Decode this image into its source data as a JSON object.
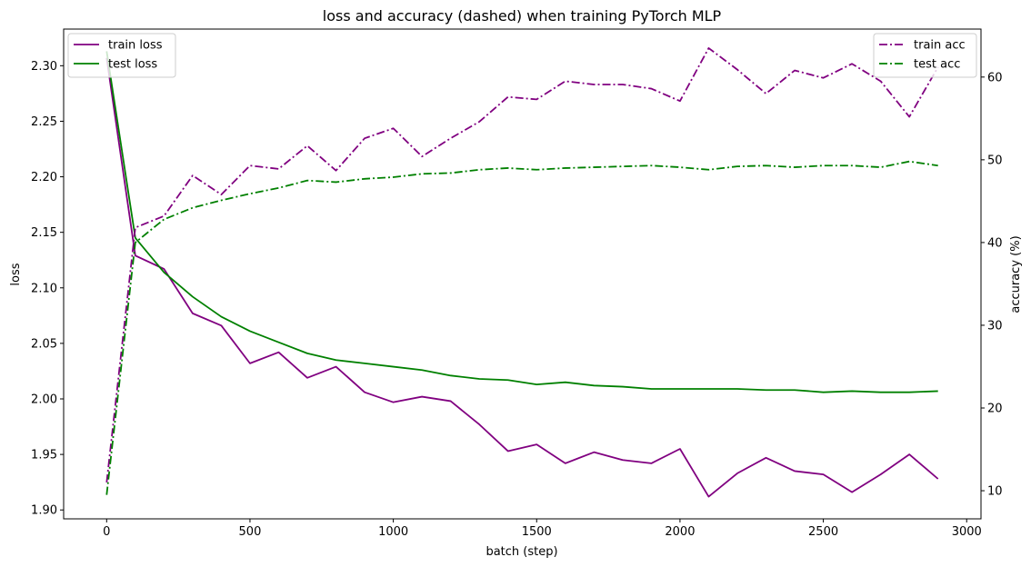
{
  "chart_data": {
    "type": "line",
    "title": "loss and accuracy (dashed) when training PyTorch MLP",
    "xlabel": "batch (step)",
    "ylabel": "loss",
    "y2label": "accuracy (%)",
    "xlim": [
      -150,
      3050
    ],
    "ylim": [
      1.892,
      2.333
    ],
    "y2lim": [
      6.6,
      65.8
    ],
    "xticks": [
      0,
      500,
      1000,
      1500,
      2000,
      2500,
      3000
    ],
    "yticks": [
      1.9,
      1.95,
      2.0,
      2.05,
      2.1,
      2.15,
      2.2,
      2.25,
      2.3
    ],
    "yticklabels": [
      "1.90",
      "1.95",
      "2.00",
      "2.05",
      "2.10",
      "2.15",
      "2.20",
      "2.25",
      "2.30"
    ],
    "y2ticks": [
      10,
      20,
      30,
      40,
      50,
      60
    ],
    "grid": false,
    "legend_left": "top-left",
    "legend_right": "top-right",
    "x": [
      0,
      100,
      200,
      300,
      400,
      500,
      600,
      700,
      800,
      900,
      1000,
      1100,
      1200,
      1300,
      1400,
      1500,
      1600,
      1700,
      1800,
      1900,
      2000,
      2100,
      2200,
      2300,
      2400,
      2500,
      2600,
      2700,
      2800,
      2900
    ],
    "series": [
      {
        "name": "train loss",
        "axis": "left",
        "color": "#800080",
        "style": "solid",
        "values": [
          2.307,
          2.129,
          2.117,
          2.077,
          2.066,
          2.032,
          2.042,
          2.019,
          2.029,
          2.006,
          1.997,
          2.002,
          1.998,
          1.977,
          1.953,
          1.959,
          1.942,
          1.952,
          1.945,
          1.942,
          1.955,
          1.912,
          1.933,
          1.947,
          1.935,
          1.932,
          1.916,
          1.932,
          1.95,
          1.928
        ]
      },
      {
        "name": "test loss",
        "axis": "left",
        "color": "#008000",
        "style": "solid",
        "values": [
          2.313,
          2.145,
          2.114,
          2.092,
          2.074,
          2.061,
          2.051,
          2.041,
          2.035,
          2.032,
          2.029,
          2.026,
          2.021,
          2.018,
          2.017,
          2.013,
          2.015,
          2.012,
          2.011,
          2.009,
          2.009,
          2.009,
          2.009,
          2.008,
          2.008,
          2.006,
          2.007,
          2.006,
          2.006,
          2.007
        ]
      },
      {
        "name": "train acc",
        "axis": "right",
        "color": "#800080",
        "style": "dashdot",
        "values": [
          11.0,
          41.8,
          43.2,
          48.1,
          45.8,
          49.3,
          48.9,
          51.7,
          48.7,
          52.6,
          53.8,
          50.4,
          52.6,
          54.6,
          57.6,
          57.3,
          59.5,
          59.1,
          59.1,
          58.6,
          57.1,
          63.5,
          60.9,
          58.0,
          60.8,
          59.9,
          61.6,
          59.5,
          55.2,
          61.2
        ]
      },
      {
        "name": "test acc",
        "axis": "right",
        "color": "#008000",
        "style": "dashdot",
        "values": [
          9.5,
          40.0,
          42.8,
          44.2,
          45.1,
          45.9,
          46.6,
          47.5,
          47.3,
          47.7,
          47.9,
          48.3,
          48.4,
          48.8,
          49.0,
          48.8,
          49.0,
          49.1,
          49.2,
          49.3,
          49.1,
          48.8,
          49.2,
          49.3,
          49.1,
          49.3,
          49.3,
          49.1,
          49.8,
          49.3
        ]
      }
    ]
  }
}
